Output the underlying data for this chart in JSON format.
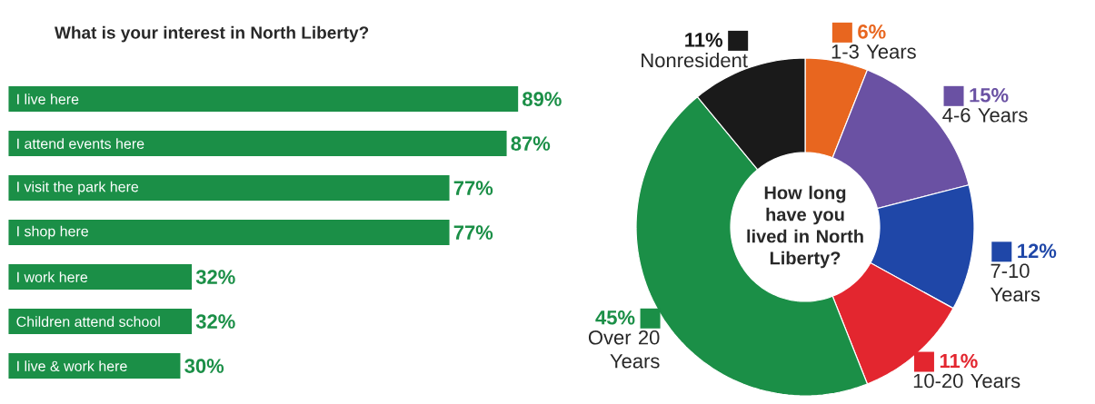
{
  "chart_data": [
    {
      "type": "bar",
      "orientation": "horizontal",
      "title": "What is your interest in North Liberty?",
      "categories": [
        "I live here",
        "I attend events here",
        "I visit the park here",
        "I shop here",
        "I work here",
        "Children attend school",
        "I live & work here"
      ],
      "values": [
        89,
        87,
        77,
        77,
        32,
        32,
        30
      ],
      "value_labels": [
        "89%",
        "87%",
        "77%",
        "77%",
        "32%",
        "32%",
        "30%"
      ],
      "color": "#1b8f47"
    },
    {
      "type": "donut",
      "title": "How long have you lived in North Liberty?",
      "categories": [
        "1-3 Years",
        "4-6 Years",
        "7-10 Years",
        "10-20 Years",
        "Over 20 Years",
        "Nonresident"
      ],
      "values": [
        6,
        15,
        12,
        11,
        45,
        11
      ],
      "value_labels": [
        "6%",
        "15%",
        "12%",
        "11%",
        "45%",
        "11%"
      ],
      "legend": "right",
      "colors": [
        "#e8661f",
        "#6a51a3",
        "#1f47a8",
        "#e3262f",
        "#1b8f47",
        "#1a1a1a"
      ]
    }
  ]
}
